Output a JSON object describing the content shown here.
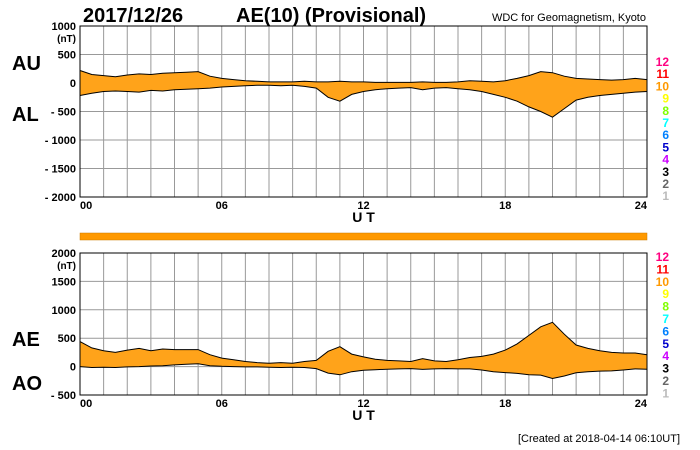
{
  "header": {
    "date": "2017/12/26",
    "title": "AE(10) (Provisional)",
    "source": "WDC for Geomagnetism, Kyoto"
  },
  "footer": {
    "created": "[Created at 2018-04-14 06:10UT]"
  },
  "legend": {
    "station_counts": [
      "12",
      "11",
      "10",
      "9",
      "8",
      "7",
      "6",
      "5",
      "4",
      "3",
      "2",
      "1"
    ],
    "colors": [
      "#ff0080",
      "#ff0000",
      "#ff9900",
      "#ffff00",
      "#80ff00",
      "#00ffff",
      "#0080ff",
      "#0000cc",
      "#cc00ff",
      "#000000",
      "#666666",
      "#bbbbbb"
    ]
  },
  "colors": {
    "fill": "#ffa31a",
    "line": "#000000",
    "coverage_bar": "#ff9900"
  },
  "chart_data": [
    {
      "type": "area",
      "panel": "top",
      "labels": [
        "AU",
        "AL"
      ],
      "unit": "(nT)",
      "xlabel": "U T",
      "xticks": [
        "00",
        "06",
        "12",
        "18",
        "24"
      ],
      "xlim": [
        0,
        24
      ],
      "ylim": [
        -2000,
        1000
      ],
      "yticks": [
        1000,
        500,
        0,
        -500,
        -1000,
        -1500,
        -2000
      ],
      "ytick_labels": [
        "1000",
        "500",
        "0",
        "- 500",
        "- 1000",
        "- 1500",
        "- 2000"
      ],
      "grid": true,
      "x": [
        0,
        0.5,
        1,
        1.5,
        2,
        2.5,
        3,
        3.5,
        4,
        4.5,
        5,
        5.5,
        6,
        6.5,
        7,
        7.5,
        8,
        8.5,
        9,
        9.5,
        10,
        10.5,
        11,
        11.5,
        12,
        12.5,
        13,
        13.5,
        14,
        14.5,
        15,
        15.5,
        16,
        16.5,
        17,
        17.5,
        18,
        18.5,
        19,
        19.5,
        20,
        20.5,
        21,
        21.5,
        22,
        22.5,
        23,
        23.5,
        24
      ],
      "series": [
        {
          "name": "AU",
          "values": [
            220,
            150,
            130,
            110,
            140,
            160,
            150,
            170,
            180,
            190,
            200,
            120,
            80,
            60,
            40,
            30,
            20,
            20,
            20,
            30,
            20,
            20,
            30,
            20,
            20,
            10,
            10,
            10,
            10,
            20,
            10,
            10,
            20,
            40,
            30,
            20,
            40,
            80,
            130,
            200,
            180,
            120,
            80,
            70,
            60,
            50,
            60,
            80,
            60
          ]
        },
        {
          "name": "AL",
          "values": [
            -220,
            -180,
            -150,
            -140,
            -150,
            -160,
            -130,
            -140,
            -120,
            -110,
            -100,
            -90,
            -70,
            -60,
            -50,
            -40,
            -40,
            -50,
            -40,
            -60,
            -90,
            -250,
            -320,
            -200,
            -150,
            -120,
            -100,
            -90,
            -80,
            -120,
            -90,
            -80,
            -100,
            -120,
            -150,
            -200,
            -250,
            -320,
            -420,
            -500,
            -600,
            -450,
            -300,
            -250,
            -220,
            -200,
            -180,
            -160,
            -150
          ]
        }
      ]
    },
    {
      "type": "area",
      "panel": "bottom",
      "labels": [
        "AE",
        "AO"
      ],
      "unit": "(nT)",
      "xlabel": "U T",
      "xticks": [
        "00",
        "06",
        "12",
        "18",
        "24"
      ],
      "xlim": [
        0,
        24
      ],
      "ylim": [
        -500,
        2000
      ],
      "yticks": [
        2000,
        1500,
        1000,
        500,
        0,
        -500
      ],
      "ytick_labels": [
        "2000",
        "1500",
        "1000",
        "500",
        "0",
        "- 500"
      ],
      "grid": true,
      "x": [
        0,
        0.5,
        1,
        1.5,
        2,
        2.5,
        3,
        3.5,
        4,
        4.5,
        5,
        5.5,
        6,
        6.5,
        7,
        7.5,
        8,
        8.5,
        9,
        9.5,
        10,
        10.5,
        11,
        11.5,
        12,
        12.5,
        13,
        13.5,
        14,
        14.5,
        15,
        15.5,
        16,
        16.5,
        17,
        17.5,
        18,
        18.5,
        19,
        19.5,
        20,
        20.5,
        21,
        21.5,
        22,
        22.5,
        23,
        23.5,
        24
      ],
      "series": [
        {
          "name": "AE",
          "values": [
            440,
            330,
            280,
            250,
            290,
            320,
            280,
            310,
            300,
            300,
            300,
            210,
            150,
            120,
            90,
            70,
            60,
            70,
            60,
            90,
            110,
            270,
            350,
            220,
            170,
            130,
            110,
            100,
            90,
            140,
            100,
            90,
            120,
            160,
            180,
            220,
            290,
            400,
            550,
            700,
            780,
            570,
            380,
            320,
            280,
            250,
            240,
            240,
            210
          ]
        },
        {
          "name": "AO",
          "values": [
            0,
            -15,
            -10,
            -15,
            -5,
            0,
            10,
            15,
            30,
            40,
            50,
            15,
            5,
            0,
            -5,
            -5,
            -10,
            -15,
            -10,
            -15,
            -35,
            -115,
            -145,
            -90,
            -65,
            -55,
            -45,
            -40,
            -35,
            -50,
            -40,
            -35,
            -40,
            -40,
            -60,
            -90,
            -105,
            -120,
            -145,
            -150,
            -210,
            -165,
            -110,
            -90,
            -80,
            -75,
            -60,
            -40,
            -45
          ]
        }
      ]
    }
  ]
}
